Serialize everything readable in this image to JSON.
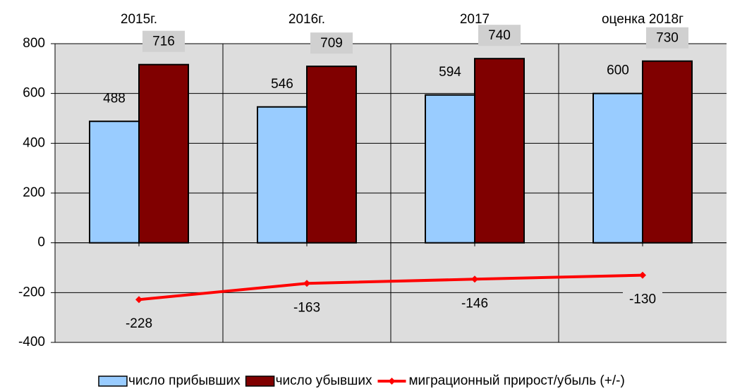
{
  "chart_data": {
    "type": "bar",
    "categories": [
      "2015г.",
      "2016г.",
      "2017",
      "оценка 2018г"
    ],
    "series": [
      {
        "name": "число прибывших",
        "color": "#99ccff",
        "values": [
          488,
          546,
          594,
          600
        ]
      },
      {
        "name": "число убывших",
        "color": "#800000",
        "values": [
          716,
          709,
          740,
          730
        ]
      },
      {
        "name": "миграционный прирост/убыль (+/-)",
        "color": "#ff0000",
        "type": "line",
        "values": [
          -228,
          -163,
          -146,
          -130
        ]
      }
    ],
    "ylim": [
      -400,
      800
    ],
    "yticks": [
      -400,
      -200,
      0,
      200,
      400,
      600,
      800
    ],
    "grid": true
  }
}
